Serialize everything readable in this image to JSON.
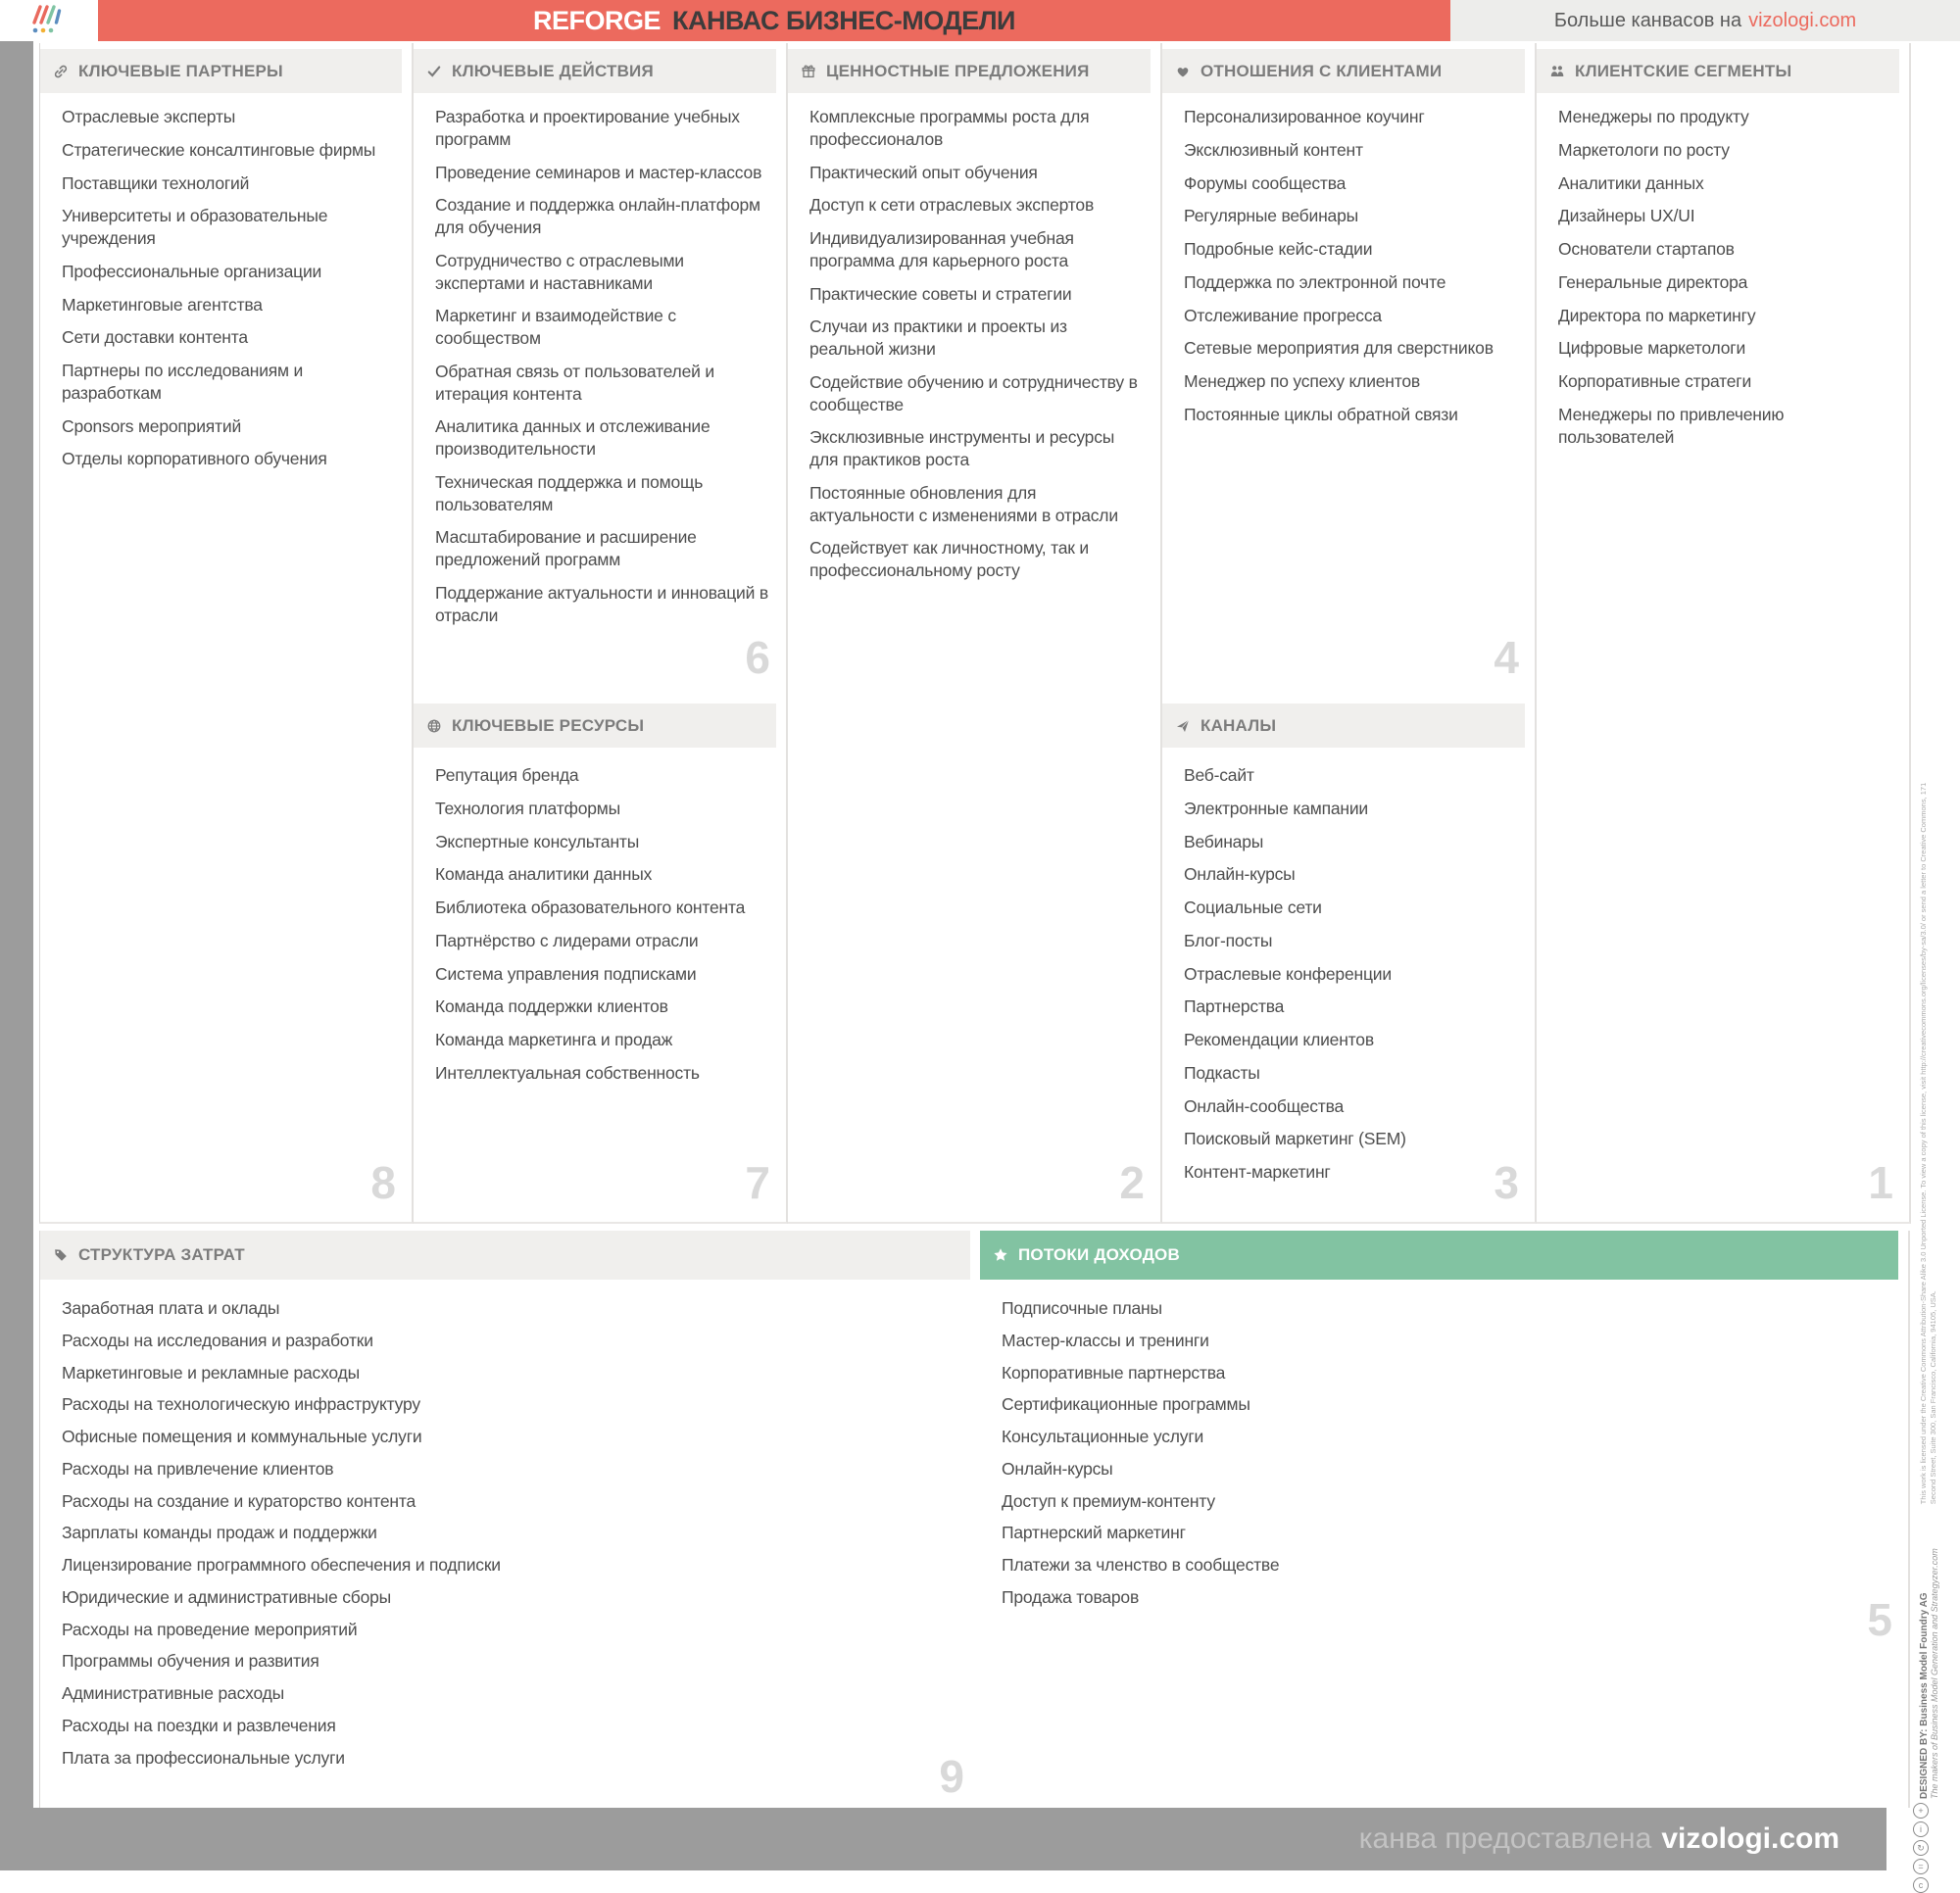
{
  "header": {
    "brand": "REFORGE",
    "title": "КАНВАС БИЗНЕС-МОДЕЛИ",
    "more_text": "Больше канвасов на",
    "more_link": "vizologi.com",
    "logo": "vizologi-logo",
    "accent_color": "#ec6a5e"
  },
  "sections": {
    "key_partners": {
      "title": "КЛЮЧЕВЫЕ ПАРТНЕРЫ",
      "icon": "link-icon",
      "number": "8",
      "items": [
        "Отраслевые эксперты",
        "Стратегические консалтинговые фирмы",
        "Поставщики технологий",
        "Университеты и образовательные учреждения",
        "Профессиональные организации",
        "Маркетинговые агентства",
        "Сети доставки контента",
        "Партнеры по исследованиям и разработкам",
        "Cponsors мероприятий",
        "Отделы корпоративного обучения"
      ]
    },
    "key_activities": {
      "title": "КЛЮЧЕВЫЕ ДЕЙСТВИЯ",
      "icon": "check-icon",
      "number": "6",
      "items": [
        "Разработка и проектирование учебных программ",
        "Проведение семинаров и мастер-классов",
        "Создание и поддержка онлайн-платформ для обучения",
        "Сотрудничество с отраслевыми экспертами и наставниками",
        "Маркетинг и взаимодействие с сообществом",
        "Обратная связь от пользователей и итерация контента",
        "Аналитика данных и отслеживание производительности",
        "Техническая поддержка и помощь пользователям",
        "Масштабирование и расширение предложений программ",
        "Поддержание актуальности и инноваций в отрасли"
      ]
    },
    "key_resources": {
      "title": "КЛЮЧЕВЫЕ РЕСУРСЫ",
      "icon": "globe-icon",
      "number": "7",
      "items": [
        "Репутация бренда",
        "Технология платформы",
        "Экспертные консультанты",
        "Команда аналитики данных",
        "Библиотека образовательного контента",
        "Партнёрство с лидерами отрасли",
        "Система управления подписками",
        "Команда поддержки клиентов",
        "Команда маркетинга и продаж",
        "Интеллектуальная собственность"
      ]
    },
    "value_propositions": {
      "title": "ЦЕННОСТНЫЕ ПРЕДЛОЖЕНИЯ",
      "icon": "gift-icon",
      "number": "2",
      "items": [
        "Комплексные программы роста для профессионалов",
        "Практический опыт обучения",
        "Доступ к сети отраслевых экспертов",
        "Индивидуализированная учебная программа для карьерного роста",
        "Практические советы и стратегии",
        "Случаи из практики и проекты из реальной жизни",
        "Содействие обучению и сотрудничеству в сообществе",
        "Эксклюзивные инструменты и ресурсы для практиков роста",
        "Постоянные обновления для актуальности с изменениями в отрасли",
        "Содействует как личностному, так и профессиональному росту"
      ]
    },
    "customer_relationships": {
      "title": "ОТНОШЕНИЯ С КЛИЕНТАМИ",
      "icon": "heart-icon",
      "number": "4",
      "items": [
        "Персонализированное коучинг",
        "Эксклюзивный контент",
        "Форумы сообщества",
        "Регулярные вебинары",
        "Подробные кейс-стадии",
        "Поддержка по электронной почте",
        "Отслеживание прогресса",
        "Сетевые мероприятия для сверстников",
        "Менеджер по успеху клиентов",
        "Постоянные циклы обратной связи"
      ]
    },
    "channels": {
      "title": "КАНАЛЫ",
      "icon": "paper-plane-icon",
      "number": "3",
      "items": [
        "Веб-сайт",
        "Электронные кампании",
        "Вебинары",
        "Онлайн-курсы",
        "Социальные сети",
        "Блог-посты",
        "Отраслевые конференции",
        "Партнерства",
        "Рекомендации клиентов",
        "Подкасты",
        "Онлайн-сообщества",
        "Поисковый маркетинг (SEM)",
        "Контент-маркетинг"
      ]
    },
    "customer_segments": {
      "title": "КЛИЕНТСКИЕ СЕГМЕНТЫ",
      "icon": "people-icon",
      "number": "1",
      "items": [
        "Менеджеры по продукту",
        "Маркетологи по росту",
        "Аналитики данных",
        "Дизайнеры UX/UI",
        "Основатели стартапов",
        "Генеральные директора",
        "Директора по маркетингу",
        "Цифровые маркетологи",
        "Корпоративные стратеги",
        "Менеджеры по привлечению пользователей"
      ]
    },
    "cost_structure": {
      "title": "СТРУКТУРА ЗАТРАТ",
      "icon": "tag-icon",
      "number": "9",
      "items": [
        "Заработная плата и оклады",
        "Расходы на исследования и разработки",
        "Маркетинговые и рекламные расходы",
        "Расходы на технологическую инфраструктуру",
        "Офисные помещения и коммунальные услуги",
        "Расходы на привлечение клиентов",
        "Расходы на создание и кураторство контента",
        "Зарплаты команды продаж и поддержки",
        "Лицензирование программного обеспечения и подписки",
        "Юридические и административные сборы",
        "Расходы на проведение мероприятий",
        "Программы обучения и развития",
        "Административные расходы",
        "Расходы на поездки и развлечения",
        "Плата за профессиональные услуги"
      ]
    },
    "revenue_streams": {
      "title": "ПОТОКИ ДОХОДОВ",
      "icon": "star-icon",
      "number": "5",
      "header_color": "#82c3a2",
      "items": [
        "Подписочные планы",
        "Мастер-классы и тренинги",
        "Корпоративные партнерства",
        "Сертификационные программы",
        "Консультационные услуги",
        "Онлайн-курсы",
        "Доступ к премиум-контенту",
        "Партнерский маркетинг",
        "Платежи за членство в сообществе",
        "Продажа товаров"
      ]
    }
  },
  "footer": {
    "text": "канва предоставлена",
    "link": "vizologi.com"
  },
  "license_strip": {
    "designed_by": "DESIGNED BY: Business Model Foundry AG",
    "designed_by_sub": "The makers of Business Model Generation and Strategyzer.com",
    "license_text": "This work is licensed under the Creative Commons Attribution-Share Alike 3.0 Unported License. To view a copy of this license, visit http://creativecommons.org/licenses/by-sa/3.0/ or send a letter to Creative Commons, 171 Second Street, Suite 300, San Francisco, California, 94105, USA.",
    "cc_icons": "cc-license-icons"
  }
}
